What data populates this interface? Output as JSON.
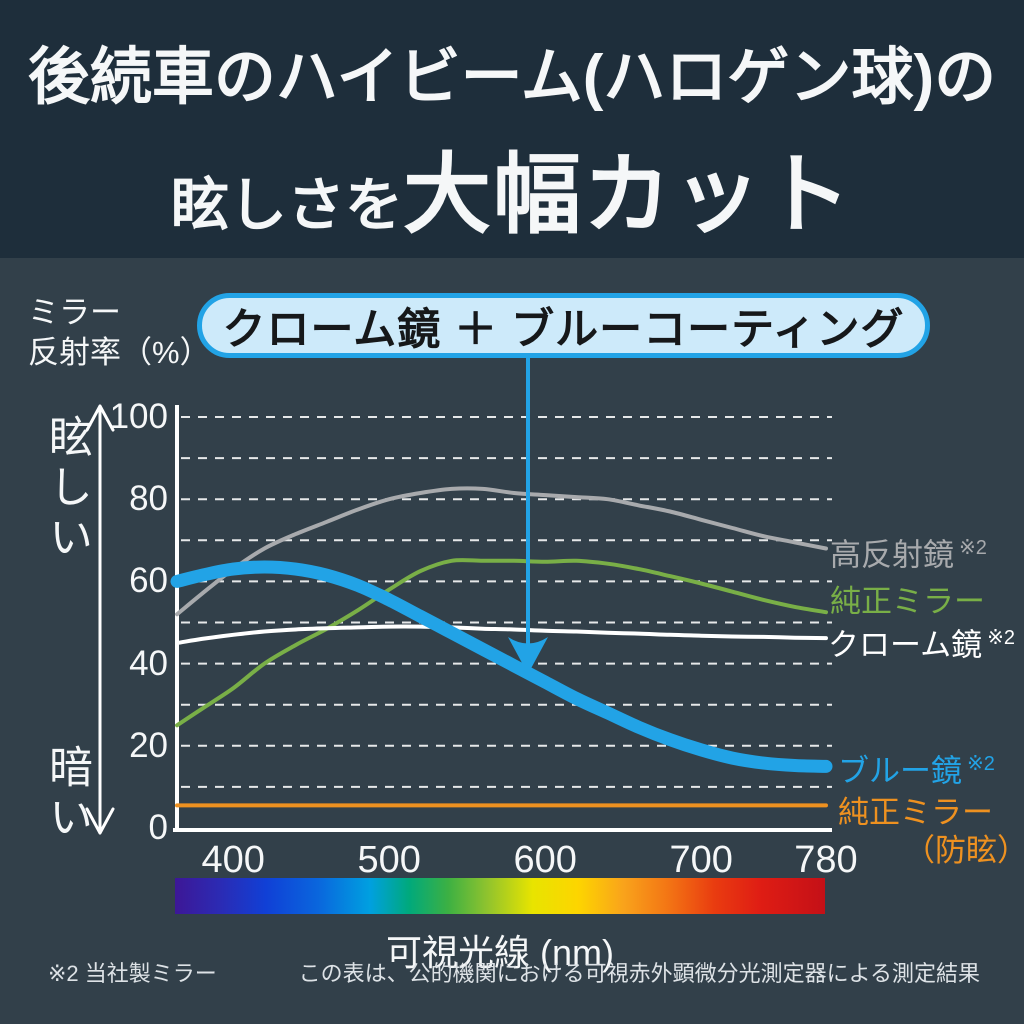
{
  "header": {
    "line1": "後続車のハイビーム(ハロゲン球)の",
    "line2_small": "眩しさを",
    "line2_large": "大幅カット"
  },
  "y_axis": {
    "title_line1": "ミラー",
    "title_line2": "反射率（%）",
    "bright_label": "眩しい",
    "dark_label": "暗い",
    "ticks": [
      100,
      80,
      60,
      40,
      20,
      0
    ]
  },
  "x_axis": {
    "ticks": [
      400,
      500,
      600,
      700,
      780
    ],
    "label": "可視光線 (nm)"
  },
  "callout": {
    "text": "クローム鏡 ＋ ブルーコーティング",
    "fill_color": "#cdeafa",
    "border_color": "#22a3e6",
    "text_color": "#16181a"
  },
  "colors": {
    "header_background": "#1e2e3b",
    "body_background": "#32404a",
    "accent_blue": "#22a3e6",
    "grid_white": "#ffffff"
  },
  "chart_data": {
    "type": "line",
    "title": "",
    "xlabel": "可視光線 (nm)",
    "ylabel": "ミラー反射率（%）",
    "ylim": [
      0,
      100
    ],
    "grid_step": 10,
    "grid": "dashed horizontal",
    "x_range_nm": [
      364,
      780
    ],
    "x_nm": [
      364,
      380,
      400,
      420,
      440,
      460,
      480,
      500,
      520,
      540,
      560,
      580,
      600,
      620,
      640,
      660,
      680,
      700,
      720,
      740,
      760,
      780
    ],
    "series": [
      {
        "name": "高反射鏡",
        "note": "※2",
        "color": "#a8aaad",
        "width": 4,
        "values": [
          52,
          57,
          63,
          68,
          71.5,
          74.5,
          77.5,
          80,
          81.5,
          82.5,
          82.5,
          81.5,
          81,
          80.5,
          80,
          78.5,
          77,
          75,
          73,
          71,
          69.5,
          68
        ]
      },
      {
        "name": "純正ミラー",
        "note": "",
        "color": "#79af47",
        "width": 4,
        "values": [
          25,
          29,
          34,
          40,
          44.5,
          48.5,
          53,
          58,
          62.5,
          65,
          65,
          65,
          64.8,
          65,
          64.3,
          63,
          61.3,
          59.5,
          57.5,
          55.5,
          53.8,
          52.5
        ]
      },
      {
        "name": "クローム鏡",
        "note": "※2",
        "color": "#ffffff",
        "width": 4,
        "values": [
          45,
          46,
          47,
          47.8,
          48.3,
          48.6,
          48.8,
          49,
          49,
          48.8,
          48.5,
          48.3,
          48,
          47.8,
          47.5,
          47.3,
          47,
          46.8,
          46.6,
          46.5,
          46.3,
          46.2
        ]
      },
      {
        "name": "ブルー鏡",
        "note": "※2",
        "color": "#22a3e6",
        "width": 13,
        "values": [
          60,
          61.5,
          63,
          63.5,
          63,
          61.5,
          59,
          55.5,
          51.5,
          47.5,
          43.5,
          39.5,
          35.5,
          31.5,
          28,
          24.5,
          21.5,
          19,
          17,
          15.8,
          15.2,
          15
        ]
      },
      {
        "name": "純正ミラー",
        "name2": "（防眩）",
        "note": "",
        "color": "#ee9120",
        "width": 4,
        "values": [
          5.5,
          5.5,
          5.5,
          5.5,
          5.5,
          5.5,
          5.5,
          5.5,
          5.5,
          5.5,
          5.5,
          5.5,
          5.5,
          5.5,
          5.5,
          5.5,
          5.5,
          5.5,
          5.5,
          5.5,
          5.5,
          5.5
        ]
      }
    ],
    "spectrum_gradient": [
      {
        "color": "#3d1796",
        "pos": 0
      },
      {
        "color": "#2b2bb4",
        "pos": 7
      },
      {
        "color": "#1040d6",
        "pos": 14
      },
      {
        "color": "#0a66dd",
        "pos": 22
      },
      {
        "color": "#00a0e0",
        "pos": 30
      },
      {
        "color": "#00a97c",
        "pos": 36
      },
      {
        "color": "#3cb043",
        "pos": 42
      },
      {
        "color": "#8fc32e",
        "pos": 48
      },
      {
        "color": "#e8e400",
        "pos": 55
      },
      {
        "color": "#fdd500",
        "pos": 62
      },
      {
        "color": "#f9a31b",
        "pos": 69
      },
      {
        "color": "#f37414",
        "pos": 76
      },
      {
        "color": "#e93c10",
        "pos": 83
      },
      {
        "color": "#df1d14",
        "pos": 90
      },
      {
        "color": "#c41017",
        "pos": 100
      }
    ],
    "annotation_arrow": {
      "points_to_series": "ブルー鏡",
      "from_callout": true
    }
  },
  "footnotes": {
    "left": "※2 当社製ミラー",
    "right": "この表は、公的機関における可視赤外顕微分光測定器による測定結果"
  }
}
